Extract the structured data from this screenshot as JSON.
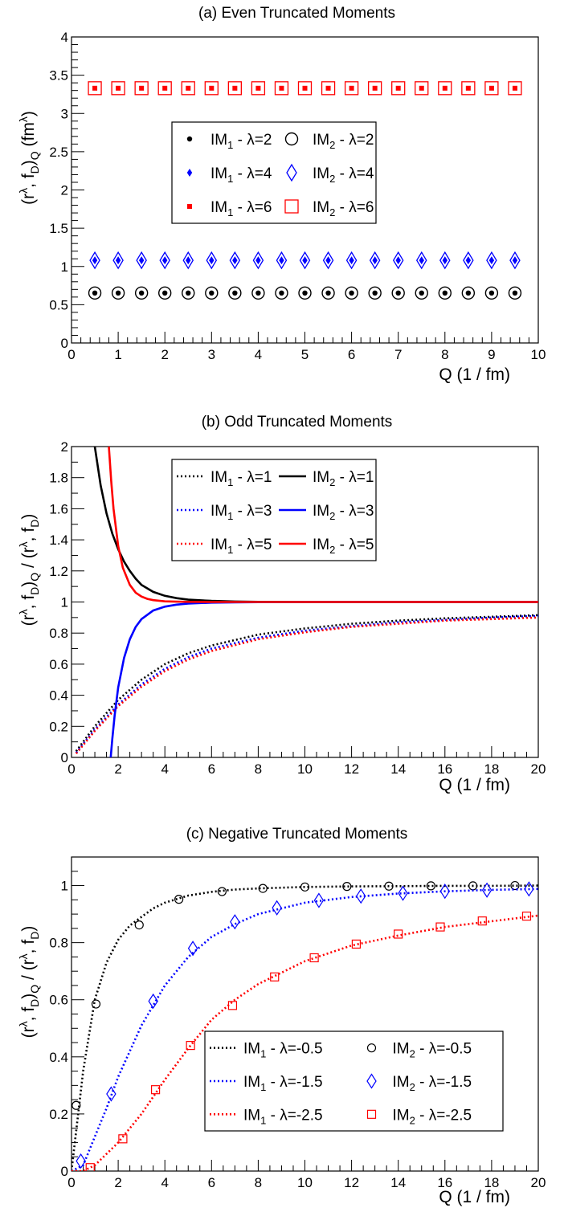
{
  "chart_data": [
    {
      "type": "scatter",
      "title": "(a)  Even Truncated Moments",
      "xlabel": "Q   (1 / fm)",
      "ylabel": "(rλ, fD)Q   (fmλ)",
      "xlim": [
        0,
        10
      ],
      "ylim": [
        0,
        4
      ],
      "xticks": [
        "0",
        "1",
        "2",
        "3",
        "4",
        "5",
        "6",
        "7",
        "8",
        "9",
        "10"
      ],
      "yticks": [
        "0",
        "0.5",
        "1",
        "1.5",
        "2",
        "2.5",
        "3",
        "3.5",
        "4"
      ],
      "x": [
        0.5,
        1,
        1.5,
        2,
        2.5,
        3,
        3.5,
        4,
        4.5,
        5,
        5.5,
        6,
        6.5,
        7,
        7.5,
        8,
        8.5,
        9,
        9.5
      ],
      "legend_position": "center",
      "series": [
        {
          "name": "IM1 - λ=2",
          "color": "#000000",
          "marker": "filled-circle",
          "value": 0.653
        },
        {
          "name": "IM2 - λ=2",
          "color": "#000000",
          "marker": "open-circle",
          "value": 0.653
        },
        {
          "name": "IM1 - λ=4",
          "color": "#0000ff",
          "marker": "filled-diamond",
          "value": 1.08
        },
        {
          "name": "IM2 - λ=4",
          "color": "#0000ff",
          "marker": "open-diamond",
          "value": 1.08
        },
        {
          "name": "IM1 - λ=6",
          "color": "#ff0000",
          "marker": "filled-square",
          "value": 3.33
        },
        {
          "name": "IM2 - λ=6",
          "color": "#ff0000",
          "marker": "open-square",
          "value": 3.33
        }
      ]
    },
    {
      "type": "line",
      "title": "(b)  Odd Truncated Moments",
      "xlabel": "Q   (1 / fm)",
      "ylabel": "(rλ, fD)Q  /  (rλ, fD)",
      "xlim": [
        0,
        20
      ],
      "ylim": [
        0,
        2
      ],
      "xticks": [
        "0",
        "2",
        "4",
        "6",
        "8",
        "10",
        "12",
        "14",
        "16",
        "18",
        "20"
      ],
      "yticks": [
        "0",
        "0.2",
        "0.4",
        "0.6",
        "0.8",
        "1",
        "1.2",
        "1.4",
        "1.6",
        "1.8",
        "2"
      ],
      "legend_position": "top-center",
      "series": [
        {
          "name": "IM1 - λ=1",
          "color": "#000000",
          "style": "dotted",
          "x": [
            0.2,
            1,
            2,
            3,
            4,
            5,
            6,
            8,
            10,
            12,
            14,
            16,
            18,
            20
          ],
          "y": [
            0.04,
            0.2,
            0.37,
            0.5,
            0.6,
            0.67,
            0.72,
            0.79,
            0.83,
            0.86,
            0.88,
            0.895,
            0.905,
            0.915
          ]
        },
        {
          "name": "IM1 - λ=3",
          "color": "#0000ff",
          "style": "dotted",
          "x": [
            0.2,
            1,
            2,
            3,
            4,
            5,
            6,
            8,
            10,
            12,
            14,
            16,
            18,
            20
          ],
          "y": [
            0.03,
            0.18,
            0.34,
            0.47,
            0.57,
            0.645,
            0.7,
            0.77,
            0.815,
            0.845,
            0.87,
            0.885,
            0.9,
            0.91
          ]
        },
        {
          "name": "IM1 - λ=5",
          "color": "#ff0000",
          "style": "dotted",
          "x": [
            0.2,
            1,
            2,
            3,
            4,
            5,
            6,
            8,
            10,
            12,
            14,
            16,
            18,
            20
          ],
          "y": [
            0.025,
            0.17,
            0.33,
            0.455,
            0.555,
            0.63,
            0.685,
            0.76,
            0.805,
            0.84,
            0.86,
            0.88,
            0.89,
            0.9
          ]
        },
        {
          "name": "IM2 - λ=1",
          "color": "#000000",
          "style": "solid",
          "x": [
            1.0,
            1.25,
            1.5,
            1.75,
            2,
            2.25,
            2.5,
            2.75,
            3,
            3.5,
            4,
            4.5,
            5,
            6,
            7,
            8,
            10,
            12,
            14,
            16,
            18,
            20
          ],
          "y": [
            2.0,
            1.75,
            1.57,
            1.44,
            1.34,
            1.26,
            1.2,
            1.15,
            1.11,
            1.065,
            1.04,
            1.025,
            1.015,
            1.007,
            1.003,
            1.001,
            1.0,
            1.0,
            1.0,
            1.0,
            1.0,
            1.0
          ]
        },
        {
          "name": "IM2 - λ=3",
          "color": "#0000ff",
          "style": "solid",
          "x": [
            1.68,
            1.75,
            1.85,
            2,
            2.25,
            2.5,
            2.75,
            3,
            3.5,
            4,
            4.5,
            5,
            6,
            7,
            8,
            10,
            12,
            14,
            16,
            18,
            20
          ],
          "y": [
            0.0,
            0.12,
            0.27,
            0.45,
            0.64,
            0.76,
            0.84,
            0.89,
            0.945,
            0.97,
            0.983,
            0.99,
            0.996,
            0.998,
            0.999,
            1.0,
            1.0,
            1.0,
            1.0,
            1.0,
            1.0
          ]
        },
        {
          "name": "IM2 - λ=5",
          "color": "#ff0000",
          "style": "solid",
          "x": [
            1.6,
            1.7,
            1.8,
            2,
            2.2,
            2.5,
            2.75,
            3,
            3.25,
            3.5,
            4,
            4.5,
            5,
            6,
            7,
            8,
            10,
            12,
            14,
            16,
            18,
            20
          ],
          "y": [
            2.0,
            1.78,
            1.6,
            1.36,
            1.22,
            1.11,
            1.06,
            1.035,
            1.02,
            1.012,
            1.004,
            1.002,
            1.001,
            1.0,
            1.0,
            1.0,
            1.0,
            1.0,
            1.0,
            1.0,
            1.0,
            1.0
          ]
        }
      ]
    },
    {
      "type": "line",
      "title": "(c)  Negative Truncated Moments",
      "xlabel": "Q   (1 / fm)",
      "ylabel": "(rλ, fD)Q  /  (rλ, fD)",
      "xlim": [
        0,
        20
      ],
      "ylim": [
        0,
        1.1
      ],
      "xticks": [
        "0",
        "2",
        "4",
        "6",
        "8",
        "10",
        "12",
        "14",
        "16",
        "18",
        "20"
      ],
      "yticks": [
        "0",
        "0.2",
        "0.4",
        "0.6",
        "0.8",
        "1"
      ],
      "legend_position": "bottom-right",
      "series": [
        {
          "name": "IM1 - λ=-0.5",
          "color": "#000000",
          "style": "dotted",
          "x": [
            0,
            0.5,
            1,
            1.5,
            2,
            2.5,
            3,
            3.5,
            4,
            5,
            6,
            7,
            8,
            10,
            12,
            14,
            16,
            18,
            20
          ],
          "y": [
            0.0,
            0.35,
            0.6,
            0.73,
            0.81,
            0.86,
            0.89,
            0.92,
            0.94,
            0.965,
            0.978,
            0.986,
            0.99,
            0.995,
            0.997,
            0.998,
            0.999,
            0.999,
            1.0
          ]
        },
        {
          "name": "IM2 - λ=-0.5",
          "color": "#000000",
          "style": "open-circle",
          "x": [
            0.2,
            1.05,
            2.9,
            4.6,
            6.45,
            8.2,
            10.0,
            11.8,
            13.6,
            15.4,
            17.2,
            19.0
          ],
          "y": [
            0.23,
            0.585,
            0.862,
            0.952,
            0.979,
            0.99,
            0.995,
            0.997,
            0.998,
            0.999,
            0.999,
            1.0
          ]
        },
        {
          "name": "IM1 - λ=-1.5",
          "color": "#0000ff",
          "style": "dotted",
          "x": [
            0,
            0.5,
            1,
            1.5,
            2,
            3,
            4,
            5,
            6,
            7,
            8,
            10,
            12,
            14,
            16,
            18,
            20
          ],
          "y": [
            0.0,
            0.02,
            0.12,
            0.22,
            0.33,
            0.51,
            0.65,
            0.75,
            0.82,
            0.865,
            0.9,
            0.94,
            0.96,
            0.972,
            0.98,
            0.985,
            0.988
          ]
        },
        {
          "name": "IM2 - λ=-1.5",
          "color": "#0000ff",
          "style": "open-diamond",
          "x": [
            0.4,
            1.7,
            3.5,
            5.2,
            7.0,
            8.8,
            10.6,
            12.4,
            14.2,
            16.0,
            17.8,
            19.6
          ],
          "y": [
            0.035,
            0.27,
            0.595,
            0.78,
            0.873,
            0.922,
            0.948,
            0.963,
            0.973,
            0.98,
            0.984,
            0.988
          ]
        },
        {
          "name": "IM1 - λ=-2.5",
          "color": "#ff0000",
          "style": "dotted",
          "x": [
            0,
            0.5,
            1,
            2,
            3,
            4,
            5,
            6,
            7,
            8,
            10,
            12,
            14,
            16,
            18,
            20
          ],
          "y": [
            0.0,
            0.0,
            0.02,
            0.1,
            0.2,
            0.32,
            0.43,
            0.53,
            0.6,
            0.655,
            0.735,
            0.79,
            0.825,
            0.855,
            0.875,
            0.895
          ]
        },
        {
          "name": "IM2 - λ=-2.5",
          "color": "#ff0000",
          "style": "open-square",
          "x": [
            0.8,
            2.2,
            3.6,
            5.1,
            6.9,
            8.7,
            10.4,
            12.2,
            14.0,
            15.8,
            17.6,
            19.5
          ],
          "y": [
            0.012,
            0.113,
            0.285,
            0.44,
            0.58,
            0.68,
            0.747,
            0.795,
            0.83,
            0.855,
            0.876,
            0.893
          ]
        }
      ]
    }
  ]
}
